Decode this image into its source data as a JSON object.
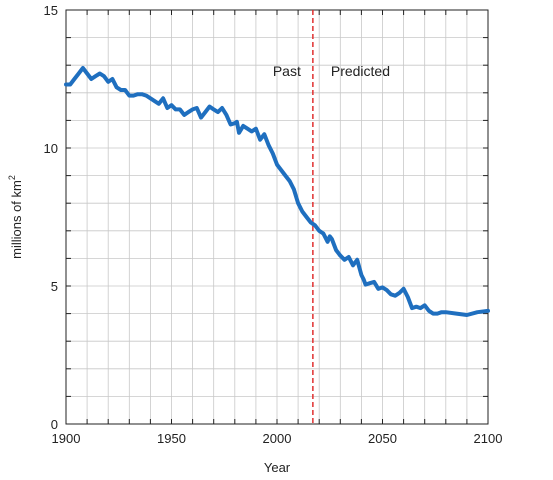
{
  "chart_data": {
    "type": "line",
    "title": "",
    "xlabel": "Year",
    "ylabel": "millions of km",
    "ylabel_superscript": "2",
    "xlim": [
      1900,
      2100
    ],
    "ylim": [
      0,
      15
    ],
    "xticks": [
      1900,
      1950,
      2000,
      2050,
      2100
    ],
    "yticks": [
      0,
      5,
      10,
      15
    ],
    "x_minor_step": 10,
    "y_minor_step": 1,
    "grid": true,
    "divider_year": 2017,
    "annotations": {
      "past": "Past",
      "predicted": "Predicted"
    },
    "line_color": "#1f6fbf",
    "divider_color": "#e03030",
    "grid_color": "#c8c8c8",
    "x": [
      1900,
      1902,
      1904,
      1906,
      1908,
      1910,
      1912,
      1914,
      1916,
      1918,
      1920,
      1922,
      1924,
      1926,
      1928,
      1930,
      1932,
      1934,
      1936,
      1938,
      1940,
      1942,
      1944,
      1945,
      1946,
      1948,
      1950,
      1952,
      1954,
      1956,
      1958,
      1960,
      1962,
      1964,
      1966,
      1968,
      1970,
      1972,
      1974,
      1976,
      1978,
      1980,
      1981,
      1982,
      1984,
      1986,
      1988,
      1990,
      1991,
      1992,
      1994,
      1996,
      1998,
      2000,
      2002,
      2004,
      2006,
      2008,
      2010,
      2012,
      2014,
      2016,
      2018,
      2020,
      2022,
      2024,
      2025,
      2026,
      2028,
      2030,
      2032,
      2034,
      2036,
      2038,
      2040,
      2041,
      2042,
      2044,
      2046,
      2048,
      2050,
      2052,
      2054,
      2056,
      2058,
      2060,
      2062,
      2064,
      2066,
      2068,
      2070,
      2072,
      2074,
      2076,
      2078,
      2080,
      2085,
      2090,
      2095,
      2100
    ],
    "y": [
      12.3,
      12.3,
      12.5,
      12.7,
      12.9,
      12.7,
      12.5,
      12.6,
      12.7,
      12.6,
      12.4,
      12.5,
      12.2,
      12.1,
      12.1,
      11.9,
      11.9,
      11.95,
      11.95,
      11.9,
      11.8,
      11.7,
      11.6,
      11.7,
      11.8,
      11.45,
      11.55,
      11.4,
      11.4,
      11.2,
      11.3,
      11.4,
      11.45,
      11.1,
      11.3,
      11.5,
      11.4,
      11.3,
      11.45,
      11.2,
      10.85,
      10.9,
      10.95,
      10.55,
      10.8,
      10.7,
      10.6,
      10.7,
      10.5,
      10.3,
      10.5,
      10.1,
      9.8,
      9.4,
      9.2,
      9.0,
      8.8,
      8.5,
      8.0,
      7.7,
      7.5,
      7.3,
      7.2,
      7.0,
      6.9,
      6.6,
      6.8,
      6.7,
      6.3,
      6.1,
      5.95,
      6.05,
      5.75,
      5.95,
      5.4,
      5.25,
      5.05,
      5.1,
      5.15,
      4.9,
      4.95,
      4.85,
      4.7,
      4.65,
      4.75,
      4.9,
      4.6,
      4.2,
      4.25,
      4.2,
      4.3,
      4.1,
      4.0,
      4.0,
      4.05,
      4.05,
      4.0,
      3.95,
      4.05,
      4.1
    ]
  }
}
